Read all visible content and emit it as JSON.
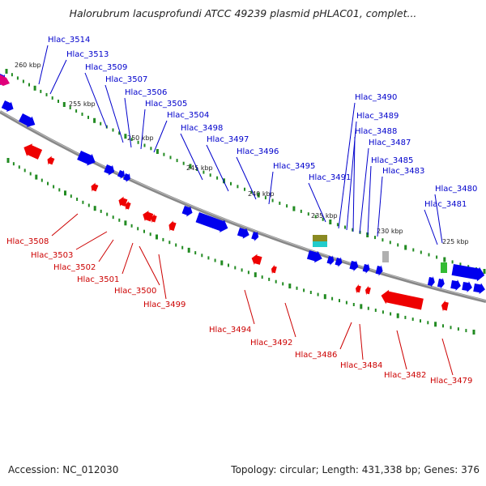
{
  "title": "Halorubrum lacusprofundi ATCC 49239 plasmid pHLAC01, complet...",
  "accession": "Accession: NC_012030",
  "summary": "Topology: circular; Length: 431,338 bp; Genes: 376",
  "colors": {
    "forward_gene": "#0000ee",
    "reverse_gene": "#ee0000",
    "tick": "#228b22",
    "backbone": "#808080",
    "forward_label": "#0000cc",
    "reverse_label": "#cc0000",
    "feature_magenta": "#e0007a",
    "feature_olive": "#8a8a22",
    "feature_cyan": "#22cccc",
    "feature_grey": "#b0b0b0",
    "feature_green": "#33bb33"
  },
  "ticks": [
    "260 kbp",
    "255 kbp",
    "250 kbp",
    "245 kbp",
    "240 kbp",
    "235 kbp",
    "230 kbp",
    "225 kbp"
  ],
  "forward_genes": [
    "Hlac_3514",
    "Hlac_3513",
    "Hlac_3509",
    "Hlac_3507",
    "Hlac_3506",
    "Hlac_3505",
    "Hlac_3504",
    "Hlac_3498",
    "Hlac_3497",
    "Hlac_3496",
    "Hlac_3495",
    "Hlac_3491",
    "Hlac_3490",
    "Hlac_3489",
    "Hlac_3488",
    "Hlac_3487",
    "Hlac_3485",
    "Hlac_3483",
    "Hlac_3480",
    "Hlac_3481"
  ],
  "reverse_genes": [
    "Hlac_3508",
    "Hlac_3503",
    "Hlac_3502",
    "Hlac_3501",
    "Hlac_3500",
    "Hlac_3499",
    "Hlac_3494",
    "Hlac_3492",
    "Hlac_3486",
    "Hlac_3484",
    "Hlac_3482",
    "Hlac_3479"
  ]
}
